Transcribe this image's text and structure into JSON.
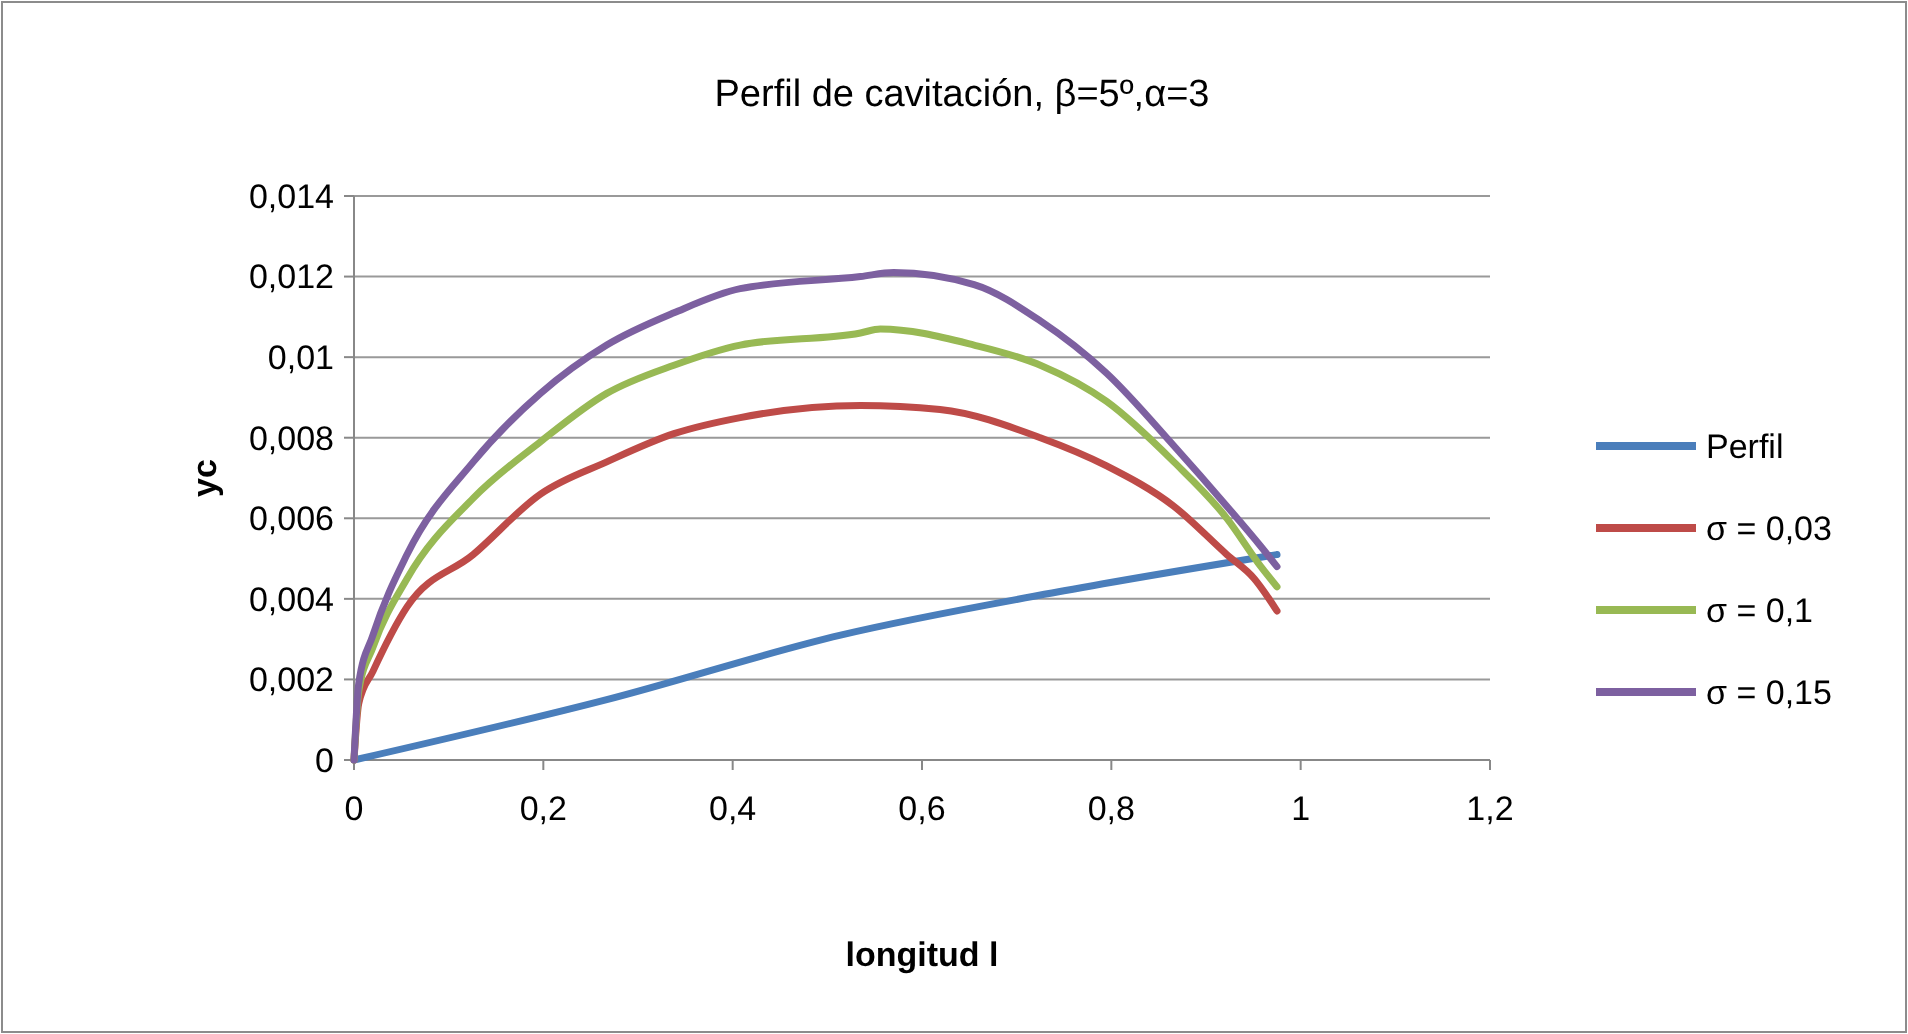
{
  "chart_data": {
    "type": "line",
    "title": "Perfil de cavitación, β=5º,α=3",
    "xlabel": "longitud l",
    "ylabel": "yc",
    "xlim": [
      0,
      1.2
    ],
    "xticks": [
      {
        "value": 0,
        "label": "0"
      },
      {
        "value": 0.2,
        "label": "0,2"
      },
      {
        "value": 0.4,
        "label": "0,4"
      },
      {
        "value": 0.6,
        "label": "0,6"
      },
      {
        "value": 0.8,
        "label": "0,8"
      },
      {
        "value": 1,
        "label": "1"
      },
      {
        "value": 1.2,
        "label": "1,2"
      }
    ],
    "ylim": [
      0,
      0.014
    ],
    "yticks": [
      {
        "value": 0,
        "label": "0"
      },
      {
        "value": 0.002,
        "label": "0,002"
      },
      {
        "value": 0.004,
        "label": "0,004"
      },
      {
        "value": 0.006,
        "label": "0,006"
      },
      {
        "value": 0.008,
        "label": "0,008"
      },
      {
        "value": 0.01,
        "label": "0,01"
      },
      {
        "value": 0.012,
        "label": "0,012"
      },
      {
        "value": 0.014,
        "label": "0,014"
      }
    ],
    "grid": "y",
    "legend": "right",
    "marker": "none",
    "line_style": "solid",
    "series": [
      {
        "name": "Perfil",
        "color": "#4a7ebb",
        "x": [
          0,
          0.267,
          0.514,
          0.75,
          0.975
        ],
        "values": [
          0,
          0.0015,
          0.0031,
          0.0042,
          0.0051
        ]
      },
      {
        "name": "σ = 0,03",
        "color": "#be4b48",
        "x": [
          0,
          0.005,
          0.02,
          0.056,
          0.126,
          0.197,
          0.267,
          0.338,
          0.408,
          0.535,
          0.619,
          0.725,
          0.795,
          0.866,
          0.922,
          0.951,
          0.975
        ],
        "values": [
          0,
          0.0014,
          0.0022,
          0.0038,
          0.0051,
          0.0066,
          0.0074,
          0.0081,
          0.0085,
          0.0088,
          0.0087,
          0.008,
          0.0073,
          0.0063,
          0.0051,
          0.0045,
          0.0037
        ]
      },
      {
        "name": "σ = 0,1",
        "color": "#98b954",
        "x": [
          0,
          0.005,
          0.02,
          0.056,
          0.126,
          0.197,
          0.267,
          0.338,
          0.408,
          0.535,
          0.556,
          0.655,
          0.725,
          0.795,
          0.866,
          0.922,
          0.958,
          0.975
        ],
        "values": [
          0,
          0.0017,
          0.0028,
          0.0045,
          0.0065,
          0.0079,
          0.0091,
          0.0098,
          0.0103,
          0.0106,
          0.0107,
          0.0103,
          0.0098,
          0.0089,
          0.0074,
          0.006,
          0.0048,
          0.0043
        ]
      },
      {
        "name": "σ = 0,15",
        "color": "#7d60a0",
        "x": [
          0,
          0.005,
          0.02,
          0.056,
          0.126,
          0.197,
          0.267,
          0.338,
          0.408,
          0.535,
          0.57,
          0.655,
          0.725,
          0.795,
          0.866,
          0.922,
          0.958,
          0.975
        ],
        "values": [
          0,
          0.0019,
          0.0031,
          0.0051,
          0.0074,
          0.0091,
          0.0103,
          0.0111,
          0.0117,
          0.012,
          0.0121,
          0.0118,
          0.0109,
          0.0096,
          0.0078,
          0.0063,
          0.0053,
          0.0048
        ]
      }
    ]
  }
}
